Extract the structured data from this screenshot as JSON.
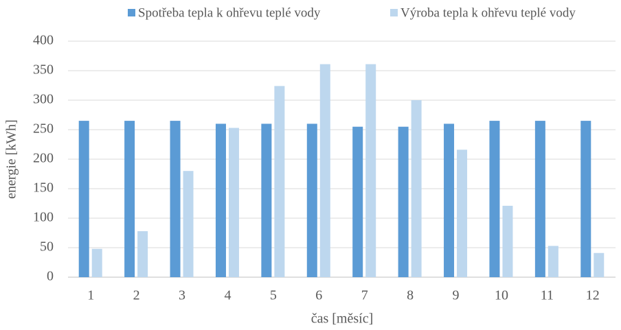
{
  "chart_data": {
    "type": "bar",
    "x_label": "čas [měsíc]",
    "y_label": "energie [kWh]",
    "categories": [
      "1",
      "2",
      "3",
      "4",
      "5",
      "6",
      "7",
      "8",
      "9",
      "10",
      "11",
      "12"
    ],
    "series": [
      {
        "name": "Spotřeba tepla k ohřevu teplé vody",
        "color": "#5b9bd5",
        "values": [
          265,
          265,
          265,
          260,
          260,
          260,
          255,
          255,
          260,
          265,
          265,
          265
        ]
      },
      {
        "name": "Výroba tepla k ohřevu teplé vody",
        "color": "#bdd7ee",
        "values": [
          48,
          78,
          180,
          253,
          324,
          361,
          361,
          300,
          216,
          121,
          53,
          41
        ]
      }
    ],
    "ylim": [
      0,
      400
    ],
    "yticks": [
      0,
      50,
      100,
      150,
      200,
      250,
      300,
      350,
      400
    ],
    "grid": true
  }
}
